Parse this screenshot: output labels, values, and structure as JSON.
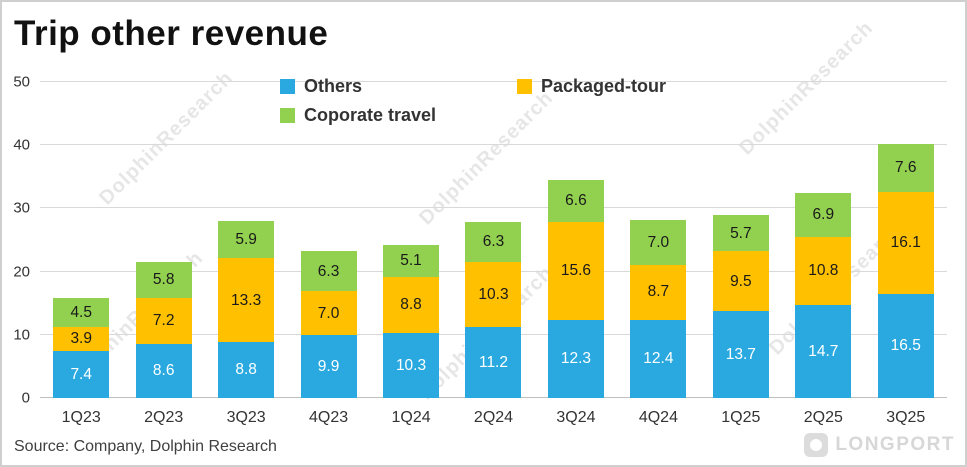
{
  "title": "Trip other revenue",
  "source": "Source: Company, Dolphin Research",
  "watermark": "DolphinResearch",
  "logo": "LONGPORT",
  "chart_data": {
    "type": "bar",
    "stacked": true,
    "title": "Trip other revenue",
    "categories": [
      "1Q23",
      "2Q23",
      "3Q23",
      "4Q23",
      "1Q24",
      "2Q24",
      "3Q24",
      "4Q24",
      "1Q25",
      "2Q25",
      "3Q25"
    ],
    "series": [
      {
        "name": "Others",
        "key": "others",
        "color": "#29A9E0",
        "label_color": "#ffffff",
        "values": [
          7.4,
          8.6,
          8.8,
          9.9,
          10.3,
          11.2,
          12.3,
          12.4,
          13.7,
          14.7,
          16.5
        ]
      },
      {
        "name": "Packaged-tour",
        "key": "packaged-tour",
        "color": "#FFC000",
        "label_color": "#1a1a1a",
        "values": [
          3.9,
          7.2,
          13.3,
          7.0,
          8.8,
          10.3,
          15.6,
          8.7,
          9.5,
          10.8,
          16.1
        ]
      },
      {
        "name": "Coporate travel",
        "key": "corporate-travel",
        "color": "#92D050",
        "label_color": "#1a1a1a",
        "values": [
          4.5,
          5.8,
          5.9,
          6.3,
          5.1,
          6.3,
          6.6,
          7.0,
          5.7,
          6.9,
          7.6
        ]
      }
    ],
    "xlabel": "",
    "ylabel": "",
    "ylim": [
      0,
      50
    ],
    "yticks": [
      0,
      10,
      20,
      30,
      40,
      50
    ],
    "legend_position": "top",
    "grid": true
  }
}
